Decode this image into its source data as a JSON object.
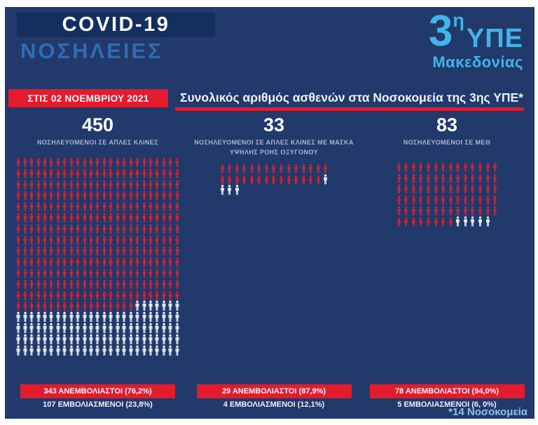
{
  "header": {
    "title": "COVID-19",
    "subtitle": "ΝΟΣΗΛΕΙΕΣ"
  },
  "logo": {
    "number": "3",
    "superscript": "η",
    "org": "ΥΠΕ",
    "region": "Μακεδονίας"
  },
  "banner": {
    "date": "ΣΤΙΣ 02 ΝΟΕΜΒΡΙΟΥ 2021",
    "title": "Συνολικός αριθμός ασθενών στα Νοσοκομεία της 3ης ΥΠΕ*"
  },
  "footnote": "*14 Νοσοκομεία",
  "colors": {
    "background": "#21396b",
    "panel": "#142e5d",
    "accent_red": "#e41b2c",
    "logo_blue": "#41b4e8",
    "subtitle_blue": "#2f6cb3",
    "muted_label": "#a9b6d0",
    "icon_red": "#e1202e",
    "icon_white": "#eef2f8"
  },
  "chart_data": {
    "type": "pictogram",
    "title": "Συνολικός αριθμός ασθενών στα Νοσοκομεία της 3ης ΥΠΕ*",
    "date": "ΣΤΙΣ 02 ΝΟΕΜΒΡΙΟΥ 2021",
    "legend": [
      {
        "name": "ΑΝΕΜΒΟΛΙΑΣΤΟΙ",
        "color": "#e1202e"
      },
      {
        "name": "ΕΜΒΟΛΙΑΣΜΕΝΟΙ",
        "color": "#eef2f8"
      }
    ],
    "groups": [
      {
        "total": 450,
        "label": "ΝΟΣΗΛΕΥΟΜΕΝΟΙ ΣΕ ΑΠΛΕΣ ΚΛΙΝΕΣ",
        "unvaccinated": 343,
        "unvaccinated_pct": 76.2,
        "vaccinated": 107,
        "vaccinated_pct": 23.8,
        "unvaccinated_label": "343 ΑΝΕΜΒΟΛΙΑΣΤΟΙ (76,2%)",
        "vaccinated_label": "107 ΕΜΒΟΛΙΑΣΜΕΝΟΙ (23,8%)",
        "icons_per_row": 25
      },
      {
        "total": 33,
        "label": "ΝΟΣΗΛΕΥΟΜΕΝΟΙ ΣΕ ΑΠΛΕΣ ΚΛΙΝΕΣ ΜΕ ΜΑΣΚΑ ΥΨΗΛΗΣ ΡΟΗΣ ΟΞΥΓΟΝΟΥ",
        "unvaccinated": 29,
        "unvaccinated_pct": 87.9,
        "vaccinated": 4,
        "vaccinated_pct": 12.1,
        "unvaccinated_label": "29 ΑΝΕΜΒΟΛΙΑΣΤΟΙ (87,9%)",
        "vaccinated_label": "4 ΕΜΒΟΛΙΑΣΜΕΝΟΙ (12,1%)",
        "icons_per_row": 15
      },
      {
        "total": 83,
        "label": "ΝΟΣΗΛΕΥΟΜΕΝΟΙ ΣΕ ΜΕΘ",
        "unvaccinated": 78,
        "unvaccinated_pct": 94.0,
        "vaccinated": 5,
        "vaccinated_pct": 6.0,
        "unvaccinated_label": "78 ΑΝΕΜΒΟΛΙΑΣΤΟΙ (94,0%)",
        "vaccinated_label": "5 ΕΜΒΟΛΙΑΣΜΕΝΟΙ (6, 0%)",
        "icons_per_row": 14
      }
    ]
  }
}
